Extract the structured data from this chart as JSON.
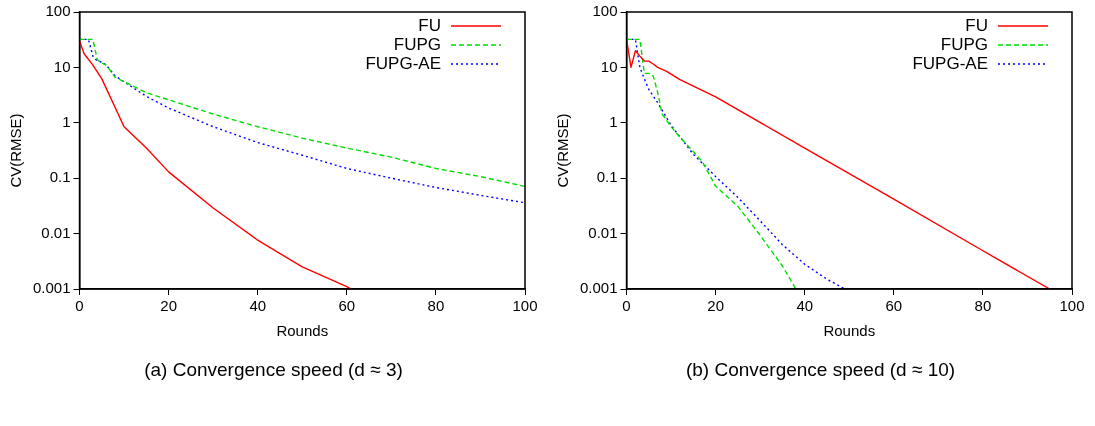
{
  "chart_data": [
    {
      "type": "line",
      "title": "(a)  Convergence speed (d ≈ 3)",
      "xlabel": "Rounds",
      "ylabel": "CV(RMSE)",
      "log": "y",
      "grid": false,
      "legend": "top right",
      "marker": "none",
      "xlim": [
        0,
        100
      ],
      "xticks": [
        0,
        20,
        40,
        60,
        80,
        100
      ],
      "ylim": [
        0.001,
        100
      ],
      "yticks": [
        0.001,
        0.01,
        0.1,
        1,
        10,
        100
      ],
      "series": [
        {
          "name": "FU",
          "color": "#ff0000",
          "line_style": "solid",
          "x": [
            0,
            1,
            3,
            5,
            10,
            15,
            20,
            30,
            40,
            50,
            60,
            61
          ],
          "values": [
            30,
            17.8,
            11,
            6.2,
            0.85,
            0.35,
            0.13,
            0.029,
            0.0076,
            0.0025,
            0.0011,
            0.001
          ]
        },
        {
          "name": "FUPG",
          "color": "#00dd00",
          "line_style": "dashed",
          "x": [
            0,
            3,
            4,
            5,
            6,
            8,
            10,
            12,
            15,
            20,
            30,
            40,
            50,
            60,
            70,
            80,
            90,
            100
          ],
          "values": [
            32,
            32,
            13.7,
            12,
            11,
            6.6,
            5.5,
            4.6,
            3.5,
            2.6,
            1.44,
            0.85,
            0.53,
            0.35,
            0.24,
            0.15,
            0.107,
            0.071
          ]
        },
        {
          "name": "FUPG-AE",
          "color": "#0000ff",
          "line_style": "dotted",
          "x": [
            0,
            2,
            3,
            4,
            5,
            6,
            8,
            10,
            12,
            15,
            20,
            30,
            40,
            50,
            60,
            70,
            80,
            90,
            100
          ],
          "values": [
            32,
            32,
            16,
            13,
            12.5,
            11,
            7,
            5.5,
            4.3,
            3,
            1.85,
            0.85,
            0.44,
            0.26,
            0.15,
            0.1,
            0.068,
            0.049,
            0.036
          ]
        }
      ]
    },
    {
      "type": "line",
      "title": "(b)  Convergence speed (d ≈ 10)",
      "xlabel": "Rounds",
      "ylabel": "CV(RMSE)",
      "log": "y",
      "grid": false,
      "legend": "top right",
      "marker": "none",
      "xlim": [
        0,
        100
      ],
      "xticks": [
        0,
        20,
        40,
        60,
        80,
        100
      ],
      "ylim": [
        0.001,
        100
      ],
      "yticks": [
        0.001,
        0.01,
        0.1,
        1,
        10,
        100
      ],
      "series": [
        {
          "name": "FU",
          "color": "#ff0000",
          "line_style": "solid",
          "x": [
            0,
            1,
            2,
            3,
            4,
            5,
            6,
            7,
            9,
            12,
            20,
            40,
            60,
            80,
            95
          ],
          "values": [
            32,
            10,
            20,
            16,
            13,
            13,
            11.5,
            10,
            8.5,
            6,
            2.95,
            0.35,
            0.042,
            0.0049,
            0.001
          ]
        },
        {
          "name": "FUPG",
          "color": "#00dd00",
          "line_style": "dashed",
          "x": [
            0,
            3,
            4,
            5,
            6,
            7,
            8,
            10,
            12,
            15,
            17,
            20,
            25,
            30,
            35,
            38
          ],
          "values": [
            32,
            32,
            7.8,
            7.8,
            7,
            3.5,
            1.44,
            0.85,
            0.55,
            0.3,
            0.2,
            0.072,
            0.031,
            0.0093,
            0.0026,
            0.001
          ]
        },
        {
          "name": "FUPG-AE",
          "color": "#0000ff",
          "line_style": "dotted",
          "x": [
            0,
            2,
            3,
            4,
            5,
            7,
            10,
            15,
            20,
            25,
            30,
            35,
            40,
            45,
            49
          ],
          "values": [
            32,
            32,
            10,
            6.2,
            4,
            2.3,
            0.9,
            0.27,
            0.107,
            0.045,
            0.017,
            0.0063,
            0.0028,
            0.0015,
            0.001
          ]
        }
      ]
    }
  ]
}
